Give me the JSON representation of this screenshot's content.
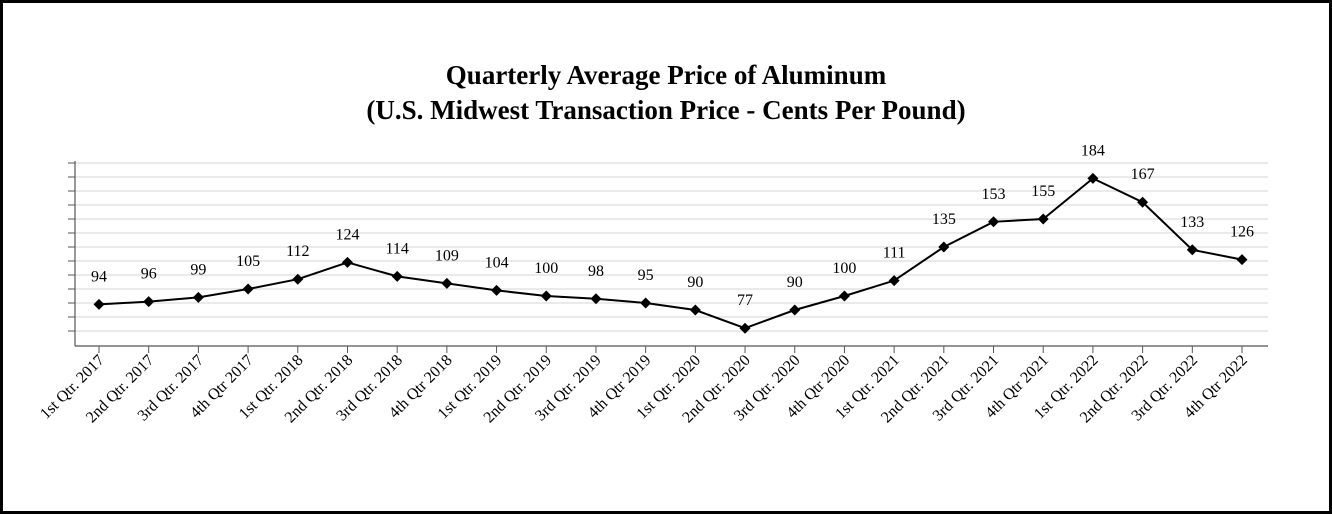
{
  "chart_data": {
    "type": "line",
    "title_line1": "Quarterly Average Price of Aluminum",
    "title_line2": "(U.S. Midwest Transaction Price - Cents Per Pound)",
    "xlabel": "",
    "ylabel": "",
    "ylim": [
      65,
      195
    ],
    "y_grid_step": 10,
    "grid": true,
    "categories": [
      "1st Qtr. 2017",
      "2nd Qtr. 2017",
      "3rd Qtr. 2017",
      "4th Qtr 2017",
      "1st Qtr. 2018",
      "2nd Qtr. 2018",
      "3rd Qtr. 2018",
      "4th Qtr 2018",
      "1st Qtr. 2019",
      "2nd Qtr. 2019",
      "3rd Qtr. 2019",
      "4th Qtr 2019",
      "1st Qtr. 2020",
      "2nd Qtr. 2020",
      "3rd Qtr. 2020",
      "4th Qtr 2020",
      "1st Qtr. 2021",
      "2nd Qtr. 2021",
      "3rd Qtr. 2021",
      "4th Qtr 2021",
      "1st Qtr. 2022",
      "2nd Qtr. 2022",
      "3rd Qtr. 2022",
      "4th Qtr 2022"
    ],
    "series": [
      {
        "name": "U.S. Midwest Transaction Price",
        "values": [
          94,
          96,
          99,
          105,
          112,
          124,
          114,
          109,
          104,
          100,
          98,
          95,
          90,
          77,
          90,
          100,
          111,
          135,
          153,
          155,
          184,
          167,
          133,
          126
        ],
        "color": "#000000",
        "marker": "diamond"
      }
    ]
  }
}
